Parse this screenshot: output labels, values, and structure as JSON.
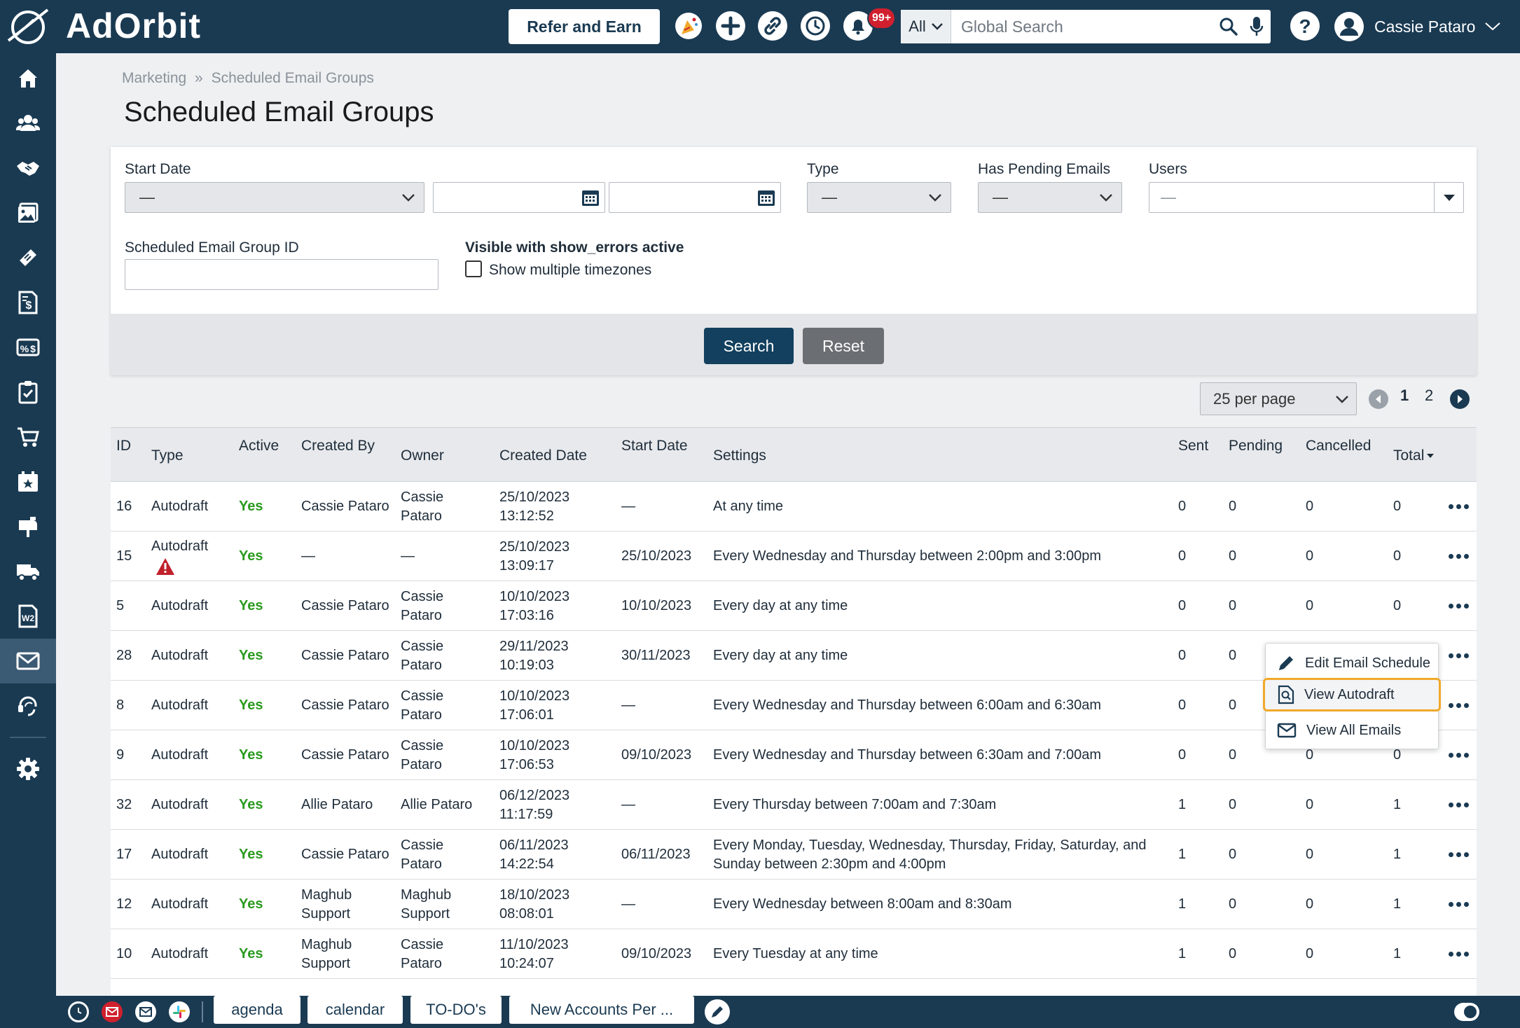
{
  "app": {
    "name": "AdOrbit"
  },
  "topbar": {
    "refer_label": "Refer and Earn",
    "notifications_badge": "99+",
    "search_scope": "All",
    "search_placeholder": "Global Search",
    "user_name": "Cassie Pataro",
    "icons": [
      "party-icon",
      "plus-icon",
      "link-icon",
      "history-icon",
      "bell-icon",
      "search-icon",
      "microphone-icon",
      "help-icon",
      "user-avatar-icon",
      "chevron-down-icon"
    ]
  },
  "sidebar": {
    "items": [
      "home-icon",
      "contacts-icon",
      "handshake-icon",
      "media-icon",
      "ticket-icon",
      "invoice-icon",
      "billing-icon",
      "tasks-icon",
      "cart-icon",
      "calendar-star-icon",
      "mailbox-icon",
      "delivery-truck-icon",
      "w2-icon",
      "email-icon",
      "support-icon",
      "settings-icon"
    ],
    "active": "email-icon"
  },
  "breadcrumb": {
    "parent": "Marketing",
    "sep": "»",
    "current": "Scheduled Email Groups"
  },
  "page_title": "Scheduled Email Groups",
  "filters": {
    "start_date_label": "Start Date",
    "start_date_value": "—",
    "type_label": "Type",
    "type_value": "—",
    "pending_label": "Has Pending Emails",
    "pending_value": "—",
    "users_label": "Users",
    "users_value": "—",
    "group_id_label": "Scheduled Email Group ID",
    "show_errors_label": "Visible with show_errors active",
    "timezones_label": "Show multiple timezones",
    "search_button": "Search",
    "reset_button": "Reset"
  },
  "pager": {
    "per_page": "25 per page",
    "pages": [
      "1",
      "2"
    ]
  },
  "table": {
    "headers": {
      "id": "ID",
      "type": "Type",
      "active": "Active",
      "created_by": "Created By",
      "owner": "Owner",
      "created_date": "Created Date",
      "start_date": "Start Date",
      "settings": "Settings",
      "sent": "Sent",
      "pending": "Pending",
      "cancelled": "Cancelled",
      "total": "Total"
    },
    "rows": [
      {
        "id": "16",
        "type": "Autodraft",
        "active": "Yes",
        "created_by": [
          "Cassie Pataro"
        ],
        "owner": [
          "Cassie",
          "Pataro"
        ],
        "created_date": [
          "25/10/2023",
          "13:12:52"
        ],
        "start_date": "—",
        "settings": [
          "At any time"
        ],
        "sent": "0",
        "pending": "0",
        "cancelled": "0",
        "total": "0",
        "warning": false
      },
      {
        "id": "15",
        "type": "Autodraft",
        "active": "Yes",
        "created_by": [
          "—"
        ],
        "owner": [
          "—"
        ],
        "created_date": [
          "25/10/2023",
          "13:09:17"
        ],
        "start_date": "25/10/2023",
        "settings": [
          "Every Wednesday and Thursday between 2:00pm and 3:00pm"
        ],
        "sent": "0",
        "pending": "0",
        "cancelled": "0",
        "total": "0",
        "warning": true
      },
      {
        "id": "5",
        "type": "Autodraft",
        "active": "Yes",
        "created_by": [
          "Cassie Pataro"
        ],
        "owner": [
          "Cassie",
          "Pataro"
        ],
        "created_date": [
          "10/10/2023",
          "17:03:16"
        ],
        "start_date": "10/10/2023",
        "settings": [
          "Every day at any time"
        ],
        "sent": "0",
        "pending": "0",
        "cancelled": "0",
        "total": "0",
        "warning": false
      },
      {
        "id": "28",
        "type": "Autodraft",
        "active": "Yes",
        "created_by": [
          "Cassie Pataro"
        ],
        "owner": [
          "Cassie",
          "Pataro"
        ],
        "created_date": [
          "29/11/2023",
          "10:19:03"
        ],
        "start_date": "30/11/2023",
        "settings": [
          "Every day at any time"
        ],
        "sent": "0",
        "pending": "0",
        "cancelled": "",
        "total": "",
        "warning": false
      },
      {
        "id": "8",
        "type": "Autodraft",
        "active": "Yes",
        "created_by": [
          "Cassie Pataro"
        ],
        "owner": [
          "Cassie",
          "Pataro"
        ],
        "created_date": [
          "10/10/2023",
          "17:06:01"
        ],
        "start_date": "—",
        "settings": [
          "Every Wednesday and Thursday between 6:00am and 6:30am"
        ],
        "sent": "0",
        "pending": "0",
        "cancelled": "",
        "total": "",
        "warning": false
      },
      {
        "id": "9",
        "type": "Autodraft",
        "active": "Yes",
        "created_by": [
          "Cassie Pataro"
        ],
        "owner": [
          "Cassie",
          "Pataro"
        ],
        "created_date": [
          "10/10/2023",
          "17:06:53"
        ],
        "start_date": "09/10/2023",
        "settings": [
          "Every Wednesday and Thursday between 6:30am and 7:00am"
        ],
        "sent": "0",
        "pending": "0",
        "cancelled": "0",
        "total": "0",
        "warning": false
      },
      {
        "id": "32",
        "type": "Autodraft",
        "active": "Yes",
        "created_by": [
          "Allie Pataro"
        ],
        "owner": [
          "Allie Pataro"
        ],
        "created_date": [
          "06/12/2023",
          "11:17:59"
        ],
        "start_date": "—",
        "settings": [
          "Every Thursday between 7:00am and 7:30am"
        ],
        "sent": "1",
        "pending": "0",
        "cancelled": "0",
        "total": "1",
        "warning": false
      },
      {
        "id": "17",
        "type": "Autodraft",
        "active": "Yes",
        "created_by": [
          "Cassie Pataro"
        ],
        "owner": [
          "Cassie",
          "Pataro"
        ],
        "created_date": [
          "06/11/2023",
          "14:22:54"
        ],
        "start_date": "06/11/2023",
        "settings": [
          "Every Monday, Tuesday, Wednesday, Thursday, Friday, Saturday, and",
          "Sunday between 2:30pm and 4:00pm"
        ],
        "sent": "1",
        "pending": "0",
        "cancelled": "0",
        "total": "1",
        "warning": false
      },
      {
        "id": "12",
        "type": "Autodraft",
        "active": "Yes",
        "created_by": [
          "Maghub",
          "Support"
        ],
        "owner": [
          "Maghub",
          "Support"
        ],
        "created_date": [
          "18/10/2023",
          "08:08:01"
        ],
        "start_date": "—",
        "settings": [
          "Every Wednesday between 8:00am and 8:30am"
        ],
        "sent": "1",
        "pending": "0",
        "cancelled": "0",
        "total": "1",
        "warning": false
      },
      {
        "id": "10",
        "type": "Autodraft",
        "active": "Yes",
        "created_by": [
          "Maghub",
          "Support"
        ],
        "owner": [
          "Cassie",
          "Pataro"
        ],
        "created_date": [
          "11/10/2023",
          "10:24:07"
        ],
        "start_date": "09/10/2023",
        "settings": [
          "Every Tuesday at any time"
        ],
        "sent": "1",
        "pending": "0",
        "cancelled": "0",
        "total": "1",
        "warning": false
      }
    ]
  },
  "context_menu": {
    "items": [
      {
        "label": "Edit Email Schedule",
        "icon": "pencil-icon"
      },
      {
        "label": "View Autodraft",
        "icon": "document-search-icon",
        "highlighted": true
      },
      {
        "label": "View All Emails",
        "icon": "envelope-icon"
      }
    ]
  },
  "bottombar": {
    "tabs": [
      "agenda",
      "calendar",
      "TO-DO's",
      "New Accounts Per ..."
    ],
    "icons": [
      "clock-icon",
      "mail-red-icon",
      "inbox-icon",
      "slack-icon",
      "edit-circle-icon",
      "toggle-icon"
    ]
  },
  "colors": {
    "navy": "#1a3a52",
    "yes_green": "#2a9a1e",
    "highlight": "#f0a92a",
    "badge_red": "#d0202e"
  }
}
